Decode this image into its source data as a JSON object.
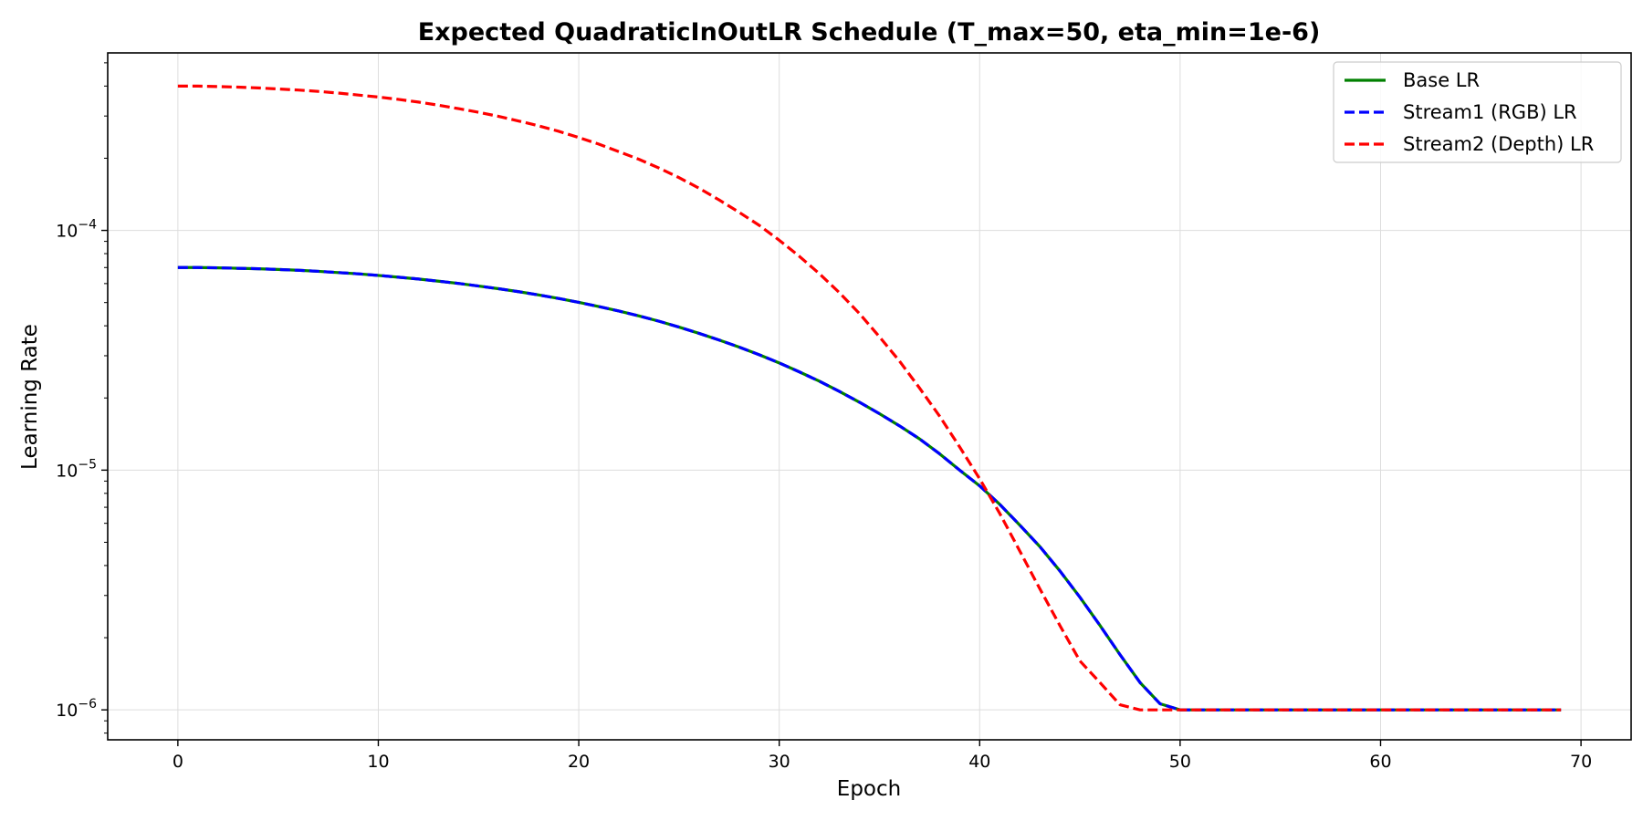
{
  "chart_data": {
    "type": "line",
    "title": "Expected QuadraticInOutLR Schedule (T_max=50, eta_min=1e-6)",
    "xlabel": "Epoch",
    "ylabel": "Learning Rate",
    "xlim": [
      -3.5,
      72.5
    ],
    "ylim": [
      7.5e-07,
      0.00055
    ],
    "yscale": "log",
    "grid": true,
    "legend_position": "top-right",
    "x_ticks": [
      0,
      10,
      20,
      30,
      40,
      50,
      60,
      70
    ],
    "x_tick_labels": [
      "0",
      "10",
      "20",
      "30",
      "40",
      "50",
      "60",
      "70"
    ],
    "y_ticks": [
      1e-06,
      1e-05,
      0.0001
    ],
    "y_tick_labels": [
      {
        "base": "10",
        "exp": "−6"
      },
      {
        "base": "10",
        "exp": "−5"
      },
      {
        "base": "10",
        "exp": "−4"
      }
    ],
    "x": [
      0,
      1,
      2,
      3,
      4,
      5,
      6,
      7,
      8,
      9,
      10,
      11,
      12,
      13,
      14,
      15,
      16,
      17,
      18,
      19,
      20,
      21,
      22,
      23,
      24,
      25,
      26,
      27,
      28,
      29,
      30,
      31,
      32,
      33,
      34,
      35,
      36,
      37,
      38,
      39,
      40,
      41,
      42,
      43,
      44,
      45,
      46,
      47,
      48,
      49,
      50,
      51,
      52,
      53,
      54,
      55,
      56,
      57,
      58,
      59,
      60,
      61,
      62,
      63,
      64,
      65,
      66,
      67,
      68,
      69
    ],
    "series": [
      {
        "name": "Base LR",
        "color": "#008000",
        "dash": "solid",
        "values": [
          7e-05,
          7e-05,
          6.98e-05,
          6.95e-05,
          6.92e-05,
          6.87e-05,
          6.82e-05,
          6.75e-05,
          6.67e-05,
          6.59e-05,
          6.49e-05,
          6.38e-05,
          6.27e-05,
          6.14e-05,
          6.01e-05,
          5.86e-05,
          5.71e-05,
          5.55e-05,
          5.38e-05,
          5.2e-05,
          5.01e-05,
          4.81e-05,
          4.61e-05,
          4.4e-05,
          4.18e-05,
          3.95e-05,
          3.72e-05,
          3.49e-05,
          3.26e-05,
          3.03e-05,
          2.8e-05,
          2.57e-05,
          2.35e-05,
          2.13e-05,
          1.92e-05,
          1.72e-05,
          1.53e-05,
          1.35e-05,
          1.17e-05,
          1e-05,
          8.6e-06,
          7.2e-06,
          5.9e-06,
          4.8e-06,
          3.8e-06,
          2.95e-06,
          2.25e-06,
          1.7e-06,
          1.3e-06,
          1.06e-06,
          1e-06,
          1e-06,
          1e-06,
          1e-06,
          1e-06,
          1e-06,
          1e-06,
          1e-06,
          1e-06,
          1e-06,
          1e-06,
          1e-06,
          1e-06,
          1e-06,
          1e-06,
          1e-06,
          1e-06,
          1e-06,
          1e-06,
          1e-06
        ]
      },
      {
        "name": "Stream1 (RGB) LR",
        "color": "#0000ff",
        "dash": "dashed",
        "values": [
          7e-05,
          7e-05,
          6.98e-05,
          6.95e-05,
          6.92e-05,
          6.87e-05,
          6.82e-05,
          6.75e-05,
          6.67e-05,
          6.59e-05,
          6.49e-05,
          6.38e-05,
          6.27e-05,
          6.14e-05,
          6.01e-05,
          5.86e-05,
          5.71e-05,
          5.55e-05,
          5.38e-05,
          5.2e-05,
          5.01e-05,
          4.81e-05,
          4.61e-05,
          4.4e-05,
          4.18e-05,
          3.95e-05,
          3.72e-05,
          3.49e-05,
          3.26e-05,
          3.03e-05,
          2.8e-05,
          2.57e-05,
          2.35e-05,
          2.13e-05,
          1.92e-05,
          1.72e-05,
          1.53e-05,
          1.35e-05,
          1.17e-05,
          1e-05,
          8.6e-06,
          7.2e-06,
          5.9e-06,
          4.8e-06,
          3.8e-06,
          2.95e-06,
          2.25e-06,
          1.7e-06,
          1.3e-06,
          1.06e-06,
          1e-06,
          1e-06,
          1e-06,
          1e-06,
          1e-06,
          1e-06,
          1e-06,
          1e-06,
          1e-06,
          1e-06,
          1e-06,
          1e-06,
          1e-06,
          1e-06,
          1e-06,
          1e-06,
          1e-06,
          1e-06,
          1e-06,
          1e-06
        ]
      },
      {
        "name": "Stream2 (Depth) LR",
        "color": "#ff0000",
        "dash": "dashed",
        "values": [
          0.0004,
          0.0004,
          0.000398,
          0.000396,
          0.000393,
          0.000389,
          0.000385,
          0.00038,
          0.000374,
          0.000367,
          0.00036,
          0.000352,
          0.000343,
          0.000333,
          0.000322,
          0.000311,
          0.000299,
          0.000286,
          0.000273,
          0.000259,
          0.000244,
          0.000229,
          0.000213,
          0.000198,
          0.000182,
          0.000166,
          0.00015,
          0.000134,
          0.000119,
          0.000105,
          9.1e-05,
          7.8e-05,
          6.6e-05,
          5.5e-05,
          4.5e-05,
          3.6e-05,
          2.85e-05,
          2.2e-05,
          1.68e-05,
          1.25e-05,
          9.2e-06,
          6.6e-06,
          4.6e-06,
          3.2e-06,
          2.25e-06,
          1.6e-06,
          1.3e-06,
          1.05e-06,
          1e-06,
          1e-06,
          1e-06,
          1e-06,
          1e-06,
          1e-06,
          1e-06,
          1e-06,
          1e-06,
          1e-06,
          1e-06,
          1e-06,
          1e-06,
          1e-06,
          1e-06,
          1e-06,
          1e-06,
          1e-06,
          1e-06,
          1e-06,
          1e-06,
          1e-06
        ]
      }
    ]
  }
}
